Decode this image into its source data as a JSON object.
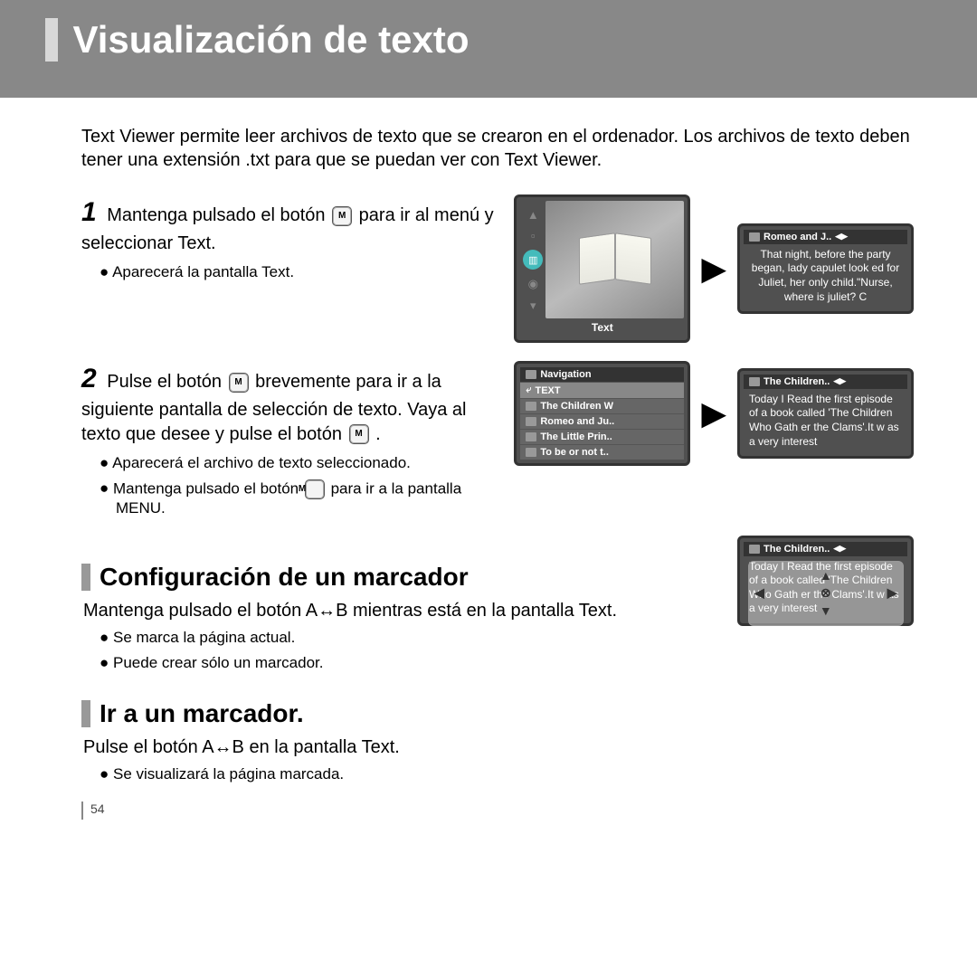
{
  "header": {
    "title": "Visualización de texto"
  },
  "intro": "Text Viewer permite leer archivos de texto que se crearon en el ordenador. Los archivos de texto deben tener una extensión .txt para que se puedan ver con Text Viewer.",
  "step1": {
    "num": "1",
    "text_a": "Mantenga pulsado el botón ",
    "text_b": " para ir al menú y seleccionar Text.",
    "bullet": "Aparecerá la pantalla Text."
  },
  "step2": {
    "num": "2",
    "text_a": "Pulse el botón ",
    "text_b": " brevemente para ir a la siguiente pantalla de selección de texto. Vaya al texto que desee y pulse el botón ",
    "text_c": " .",
    "bullet1": "Aparecerá el archivo de texto seleccionado.",
    "bullet2_a": "Mantenga pulsado el botón ",
    "bullet2_b": " para ir a la pantalla MENU."
  },
  "screen_text_menu": {
    "footer": "Text"
  },
  "screen_romeo": {
    "title": "Romeo and J..",
    "body": "That night, before the party began, lady capulet look ed for Juliet, her only child.\"Nurse, where is juliet? C"
  },
  "screen_nav": {
    "title": "Navigation",
    "items": [
      "TEXT",
      "The Children W",
      "Romeo and Ju..",
      "The Little Prin..",
      "To be or not t.."
    ]
  },
  "screen_children": {
    "title": "The Children..",
    "body": "Today I Read the first episode of a book called 'The Children Who Gath er the Clams'.It w as a very interest"
  },
  "section_bookmark": {
    "title": "Configuración de un marcador",
    "body": "Mantenga pulsado el botón A↔B  mientras está en la pantalla Text.",
    "bullet1": "Se marca la página actual.",
    "bullet2": "Puede crear sólo un marcador."
  },
  "screen_overlay": {
    "title": "The Children..",
    "body": "Today I Read the first episode of a book called 'The Children Who Gath er the Clams'.It w as a very interest"
  },
  "section_goto": {
    "title": "Ir a un marcador.",
    "body": "Pulse el botón  A↔B  en la pantalla Text.",
    "bullet1": "Se visualizará la página marcada."
  },
  "page_num": "54",
  "colors": {
    "header_bg": "#888888",
    "bar": "#d8d8d8",
    "screen_border": "#333333",
    "screen_bg": "#505050"
  }
}
